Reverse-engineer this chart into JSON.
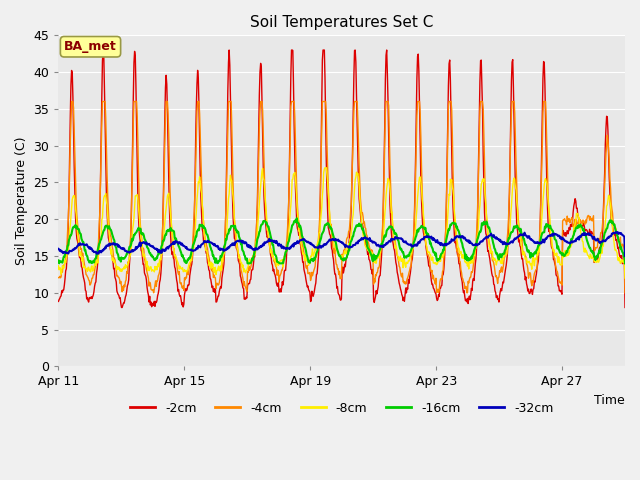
{
  "title": "Soil Temperatures Set C",
  "xlabel": "Time",
  "ylabel": "Soil Temperature (C)",
  "ylim": [
    0,
    45
  ],
  "yticks": [
    0,
    5,
    10,
    15,
    20,
    25,
    30,
    35,
    40,
    45
  ],
  "x_tick_days": [
    0,
    4,
    8,
    12,
    16
  ],
  "x_tick_labels": [
    "Apr 11",
    "Apr 15",
    "Apr 19",
    "Apr 23",
    "Apr 27"
  ],
  "xlim": [
    0,
    18
  ],
  "colors": {
    "-2cm": "#dd0000",
    "-4cm": "#ff8800",
    "-8cm": "#ffee00",
    "-16cm": "#00cc00",
    "-32cm": "#0000bb"
  },
  "legend_labels": [
    "-2cm",
    "-4cm",
    "-8cm",
    "-16cm",
    "-32cm"
  ],
  "plot_bg_color": "#e8e8e8",
  "fig_bg_color": "#f0f0f0",
  "annotation_text": "BA_met",
  "annotation_bg": "#ffff99",
  "annotation_border": "#999944",
  "annotation_text_color": "#8b0000",
  "grid_color": "#ffffff",
  "title_fontsize": 11,
  "axis_fontsize": 9,
  "legend_fontsize": 9
}
